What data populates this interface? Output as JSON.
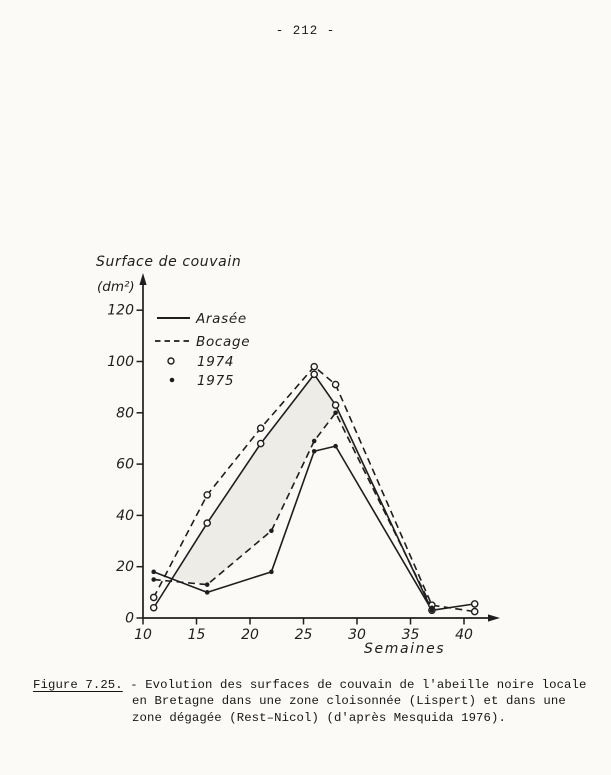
{
  "page": {
    "number": "- 212 -"
  },
  "chart": {
    "ylabel_line1": "Surface de couvain",
    "ylabel_line2": "(dm²)",
    "xlabel": "Semaines",
    "legend": [
      {
        "label": "Arasée",
        "marker": "solid-line"
      },
      {
        "label": "Bocage",
        "marker": "dashed-line"
      },
      {
        "label": "1974",
        "marker": "open-circle"
      },
      {
        "label": "1975",
        "marker": "filled-dot"
      }
    ]
  },
  "chart_data": {
    "type": "line",
    "title": "",
    "xlabel": "Semaines",
    "ylabel": "Surface de couvain (dm²)",
    "xlim": [
      10,
      43
    ],
    "ylim": [
      0,
      130
    ],
    "x_ticks": [
      10,
      15,
      20,
      25,
      30,
      35,
      40
    ],
    "y_ticks": [
      0,
      20,
      40,
      60,
      80,
      100,
      120
    ],
    "grid": false,
    "legend_position": "upper-left",
    "series": [
      {
        "name": "Arasée 1974",
        "line": "solid",
        "marker": "open-circle",
        "x": [
          11,
          16,
          21,
          26,
          28,
          37,
          41
        ],
        "y": [
          4,
          37,
          68,
          95,
          83,
          3,
          5.5
        ]
      },
      {
        "name": "Bocage 1974",
        "line": "dashed",
        "marker": "open-circle",
        "x": [
          11,
          16,
          21,
          26,
          28,
          37,
          41
        ],
        "y": [
          8,
          48,
          74,
          98,
          91,
          5,
          2.5
        ]
      },
      {
        "name": "Arasée 1975",
        "line": "solid",
        "marker": "filled-dot",
        "x": [
          11,
          16,
          22,
          26,
          28,
          37
        ],
        "y": [
          18,
          10,
          18,
          65,
          67,
          3
        ]
      },
      {
        "name": "Bocage 1975",
        "line": "dashed",
        "marker": "filled-dot",
        "x": [
          11,
          16,
          22,
          26,
          28,
          37
        ],
        "y": [
          15,
          13,
          34,
          69,
          80,
          4
        ]
      }
    ],
    "shade_band": {
      "description": "light stippled area between Arasée 1974 curve (top) and Bocage 1975 curve (bottom)",
      "top_series": 0,
      "top_range": [
        1,
        5
      ],
      "bottom_series": 3,
      "bottom_range": [
        1,
        5
      ],
      "start": [
        12.8,
        15.5
      ],
      "color": "#edece6"
    }
  },
  "caption": {
    "label": "Figure 7.25.",
    "line1_rest": " - Evolution des surfaces de couvain de l'abeille noire locale",
    "line2": "en Bretagne dans une zone cloisonnée (Lispert) et dans une",
    "line3": "zone dégagée (Rest–Nicol) (d'après Mesquida 1976)."
  },
  "colors": {
    "ink": "#1e1e1e",
    "paper": "#fbfaf7",
    "shade": "#edece6"
  }
}
